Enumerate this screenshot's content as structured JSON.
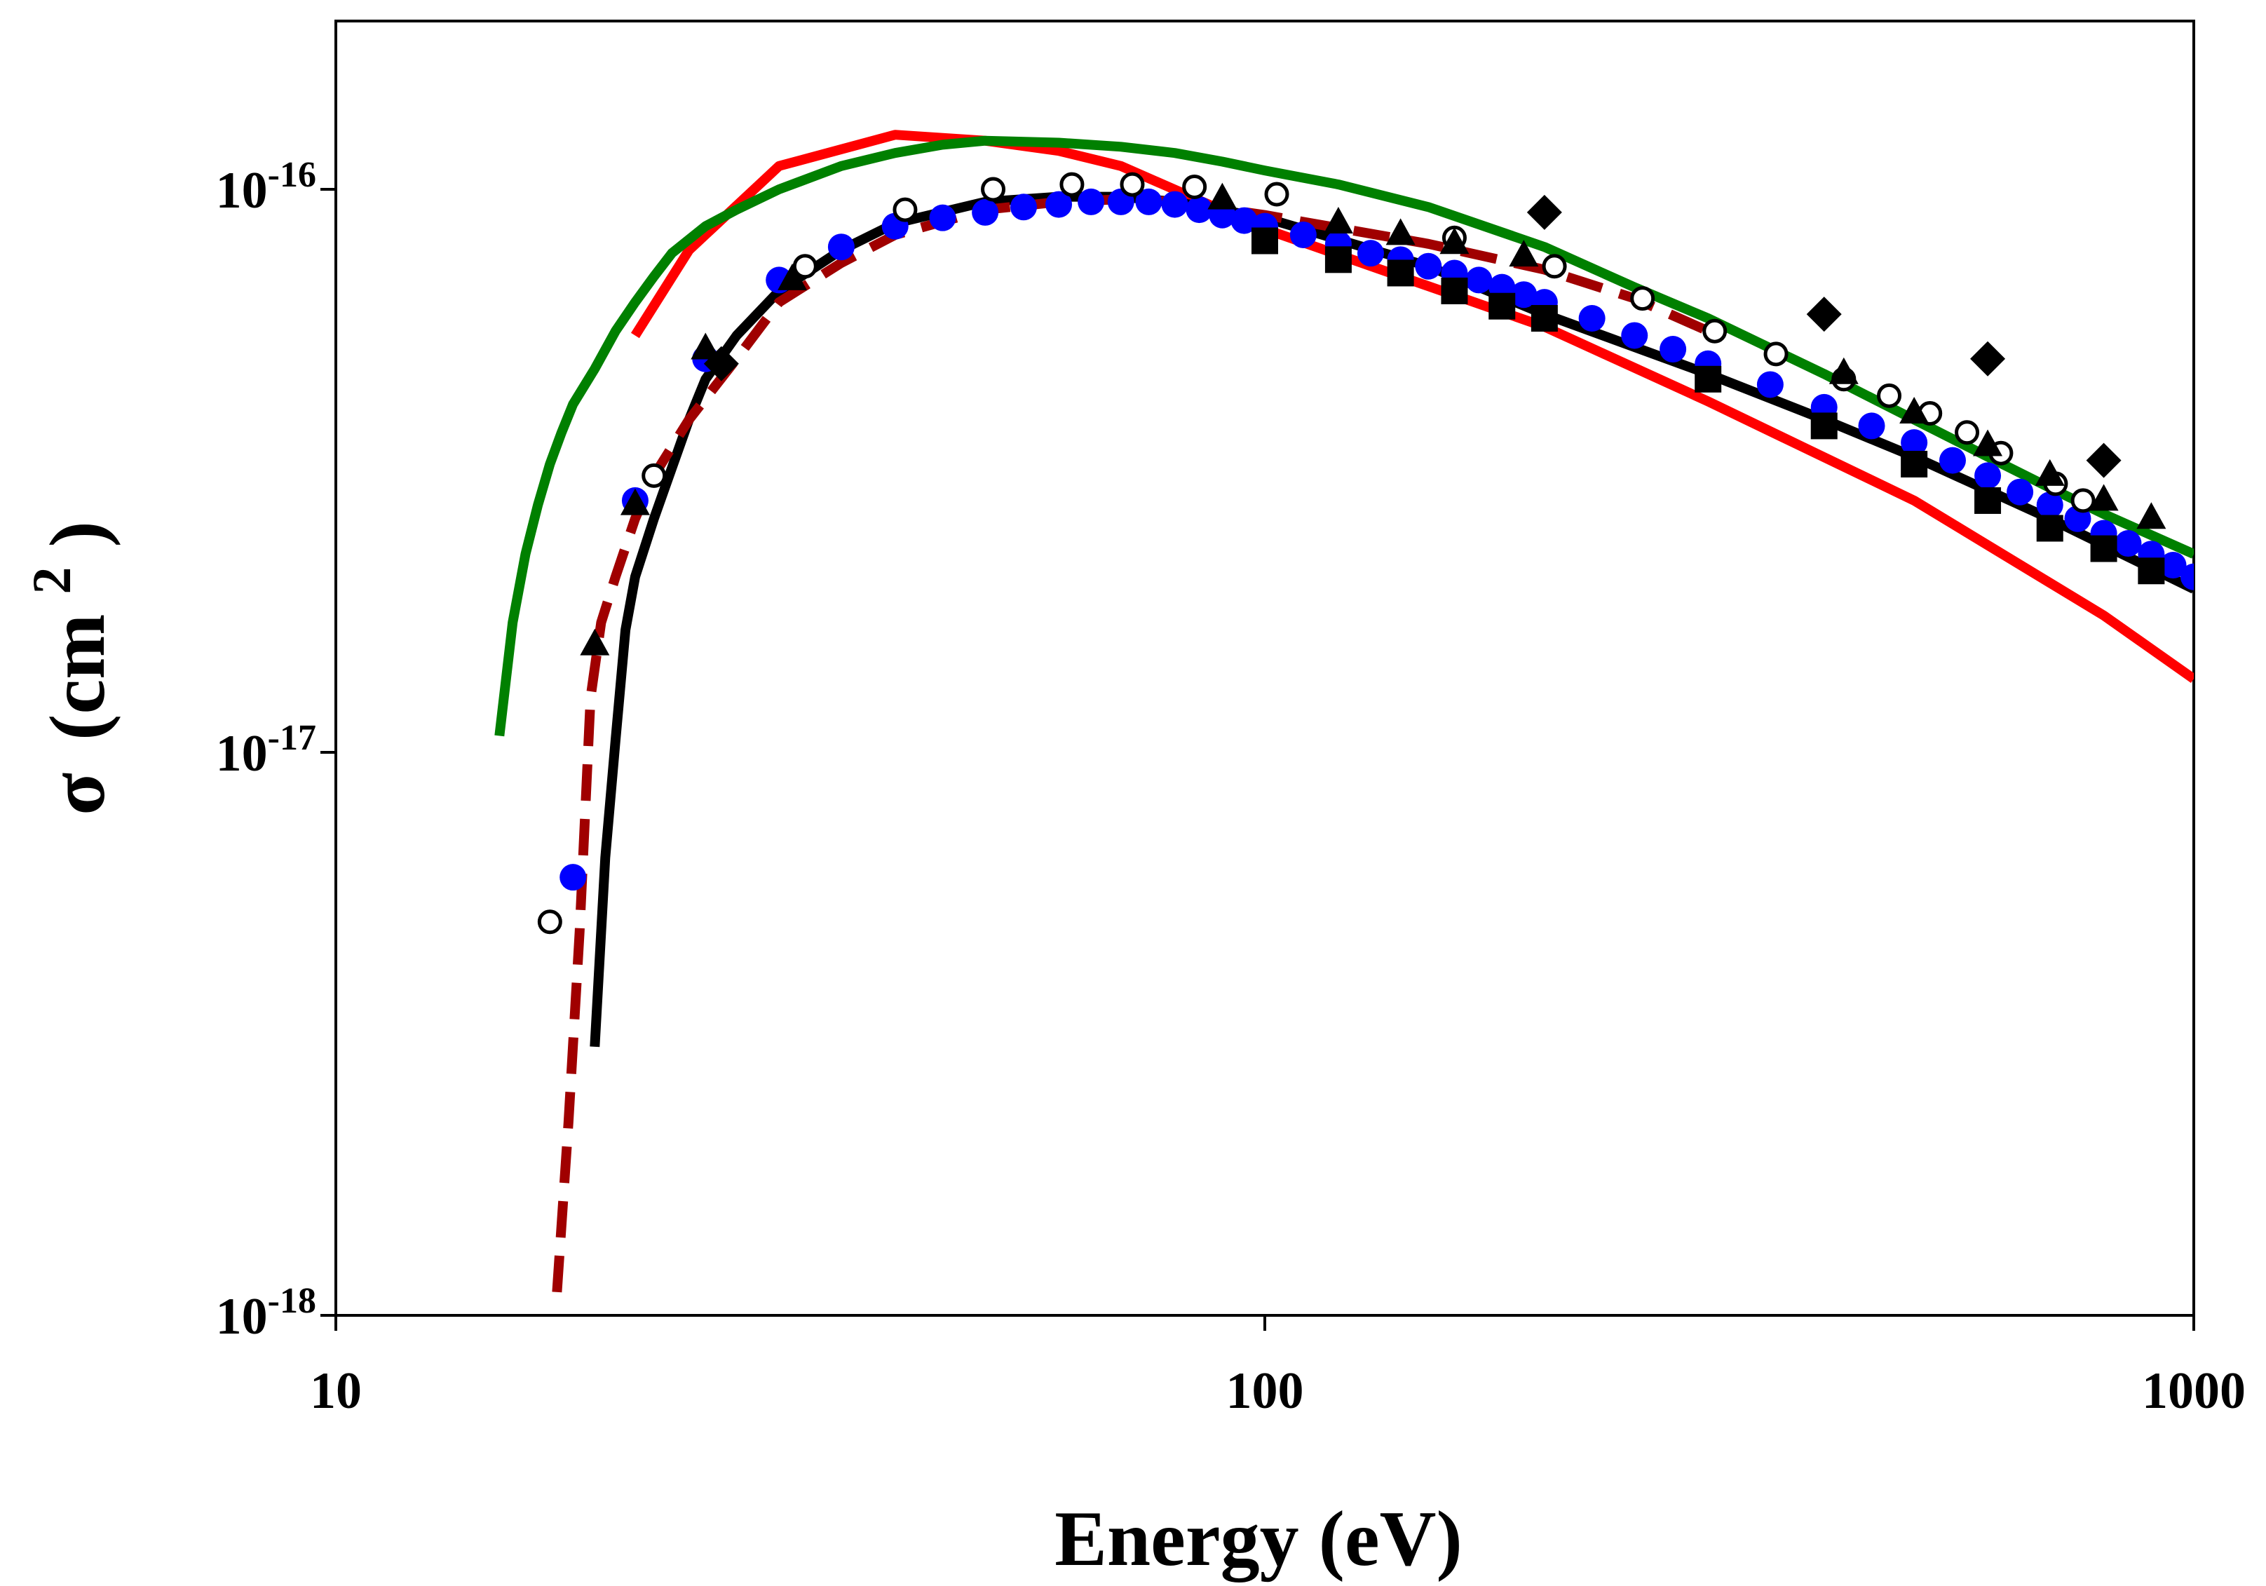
{
  "chart_data": {
    "type": "scatter",
    "title": "",
    "xlabel": "Energy (eV)",
    "ylabel_symbol": "σ",
    "ylabel_unit": "(cm",
    "ylabel_exp": "2",
    "ylabel_close": ")",
    "x_scale": "log",
    "y_scale": "log",
    "xlim": [
      10,
      1000
    ],
    "ylim": [
      1e-18,
      2e-16
    ],
    "x_ticks": [
      {
        "value": 10,
        "label": "10"
      },
      {
        "value": 100,
        "label": "100"
      },
      {
        "value": 1000,
        "label": "1000"
      }
    ],
    "y_ticks": [
      {
        "value": 1e-18,
        "base": "10",
        "exp": "-18"
      },
      {
        "value": 1e-17,
        "base": "10",
        "exp": "-17"
      },
      {
        "value": 1e-16,
        "base": "10",
        "exp": "-16"
      }
    ],
    "grid": false,
    "legend": "none",
    "series": [
      {
        "name": "red-line",
        "kind": "line",
        "color": "#ff0000",
        "dash": "solid",
        "x": [
          21,
          24,
          30,
          40,
          50,
          60,
          70,
          100,
          200,
          300,
          500,
          800,
          1000
        ],
        "y": [
          5.5e-17,
          7.8e-17,
          1.1e-16,
          1.25e-16,
          1.22e-16,
          1.17e-16,
          1.1e-16,
          8.5e-17,
          5.7e-17,
          4.2e-17,
          2.8e-17,
          1.75e-17,
          1.35e-17
        ]
      },
      {
        "name": "green-line",
        "kind": "line",
        "color": "#008000",
        "dash": "solid",
        "x": [
          15,
          15.5,
          16,
          16.5,
          17,
          17.5,
          18,
          19,
          20,
          21,
          22,
          23,
          25,
          27,
          30,
          35,
          40,
          45,
          50,
          60,
          70,
          80,
          90,
          100,
          120,
          150,
          200,
          250,
          300,
          400,
          500,
          600,
          700,
          800,
          1000
        ],
        "y": [
          1.07e-17,
          1.7e-17,
          2.25e-17,
          2.75e-17,
          3.25e-17,
          3.7e-17,
          4.15e-17,
          4.8e-17,
          5.6e-17,
          6.3e-17,
          7e-17,
          7.7e-17,
          8.6e-17,
          9.2e-17,
          1e-16,
          1.1e-16,
          1.16e-16,
          1.2e-16,
          1.22e-16,
          1.21e-16,
          1.19e-16,
          1.16e-16,
          1.12e-16,
          1.08e-16,
          1.02e-16,
          9.3e-17,
          7.9e-17,
          6.7e-17,
          5.9e-17,
          4.7e-17,
          3.9e-17,
          3.35e-17,
          2.95e-17,
          2.65e-17,
          2.25e-17
        ]
      },
      {
        "name": "black-line",
        "kind": "line",
        "color": "#000000",
        "dash": "solid",
        "x": [
          19,
          19.5,
          20,
          20.5,
          21,
          22,
          23,
          24,
          25,
          27,
          30,
          35,
          40,
          50,
          60,
          70,
          80,
          100,
          150,
          200,
          300,
          400,
          500,
          700,
          1000
        ],
        "y": [
          3e-18,
          6.5e-18,
          1.05e-17,
          1.65e-17,
          2.05e-17,
          2.6e-17,
          3.2e-17,
          3.9e-17,
          4.6e-17,
          5.5e-17,
          6.6e-17,
          7.8e-17,
          8.7e-17,
          9.5e-17,
          9.7e-17,
          9.7e-17,
          9.5e-17,
          8.9e-17,
          7.3e-17,
          6e-17,
          4.7e-17,
          3.9e-17,
          3.35e-17,
          2.6e-17,
          1.95e-17
        ]
      },
      {
        "name": "darkred-dashed-line",
        "kind": "line",
        "color": "#a00000",
        "dash": "dashed",
        "x": [
          17.3,
          17.8,
          18.3,
          18.8,
          19.3,
          20,
          21,
          22,
          24,
          27,
          30,
          35,
          40,
          50,
          60,
          70,
          80,
          100,
          150,
          200,
          250,
          300
        ],
        "y": [
          1.1e-18,
          2.2e-18,
          4.8e-18,
          1.25e-17,
          1.7e-17,
          2.05e-17,
          2.6e-17,
          3.1e-17,
          3.9e-17,
          5e-17,
          6.3e-17,
          7.4e-17,
          8.3e-17,
          9.2e-17,
          9.5e-17,
          9.6e-17,
          9.5e-17,
          9e-17,
          8e-17,
          7.2e-17,
          6.4e-17,
          5.6e-17
        ]
      },
      {
        "name": "blue-filled-circles",
        "kind": "marker",
        "marker": "circle",
        "color": "#0000ff",
        "fill": true,
        "x": [
          18,
          21,
          25,
          30,
          35,
          40,
          45,
          50,
          55,
          60,
          65,
          70,
          75,
          80,
          85,
          90,
          95,
          100,
          110,
          120,
          130,
          140,
          150,
          160,
          170,
          180,
          190,
          200,
          225,
          250,
          275,
          300,
          350,
          400,
          450,
          500,
          550,
          600,
          650,
          700,
          750,
          800,
          850,
          900,
          950,
          1000
        ],
        "y": [
          6e-18,
          2.8e-17,
          5e-17,
          6.9e-17,
          7.9e-17,
          8.6e-17,
          8.9e-17,
          9.1e-17,
          9.3e-17,
          9.4e-17,
          9.5e-17,
          9.5e-17,
          9.5e-17,
          9.4e-17,
          9.2e-17,
          9e-17,
          8.8e-17,
          8.6e-17,
          8.3e-17,
          8e-17,
          7.7e-17,
          7.5e-17,
          7.3e-17,
          7.1e-17,
          6.9e-17,
          6.7e-17,
          6.5e-17,
          6.3e-17,
          5.9e-17,
          5.5e-17,
          5.2e-17,
          4.9e-17,
          4.5e-17,
          4.1e-17,
          3.8e-17,
          3.55e-17,
          3.3e-17,
          3.1e-17,
          2.9e-17,
          2.75e-17,
          2.6e-17,
          2.45e-17,
          2.35e-17,
          2.25e-17,
          2.15e-17,
          2.05e-17
        ]
      },
      {
        "name": "open-circles",
        "kind": "marker",
        "marker": "circle",
        "color": "#000000",
        "fill": false,
        "x": [
          17,
          22,
          32,
          41,
          51,
          62,
          72,
          84,
          103,
          160,
          205,
          255,
          305,
          355,
          420,
          470,
          520,
          570,
          620,
          710,
          760
        ],
        "y": [
          5e-18,
          3.1e-17,
          7.3e-17,
          9.2e-17,
          1e-16,
          1.02e-16,
          1.02e-16,
          1.01e-16,
          9.8e-17,
          8.2e-17,
          7.3e-17,
          6.4e-17,
          5.6e-17,
          5.1e-17,
          4.6e-17,
          4.3e-17,
          4e-17,
          3.7e-17,
          3.4e-17,
          3e-17,
          2.8e-17
        ]
      },
      {
        "name": "black-triangles",
        "kind": "marker",
        "marker": "triangle",
        "color": "#000000",
        "fill": true,
        "x": [
          19,
          21,
          25,
          31,
          90,
          120,
          140,
          160,
          190,
          420,
          500,
          600,
          700,
          800,
          900
        ],
        "y": [
          1.55e-17,
          2.75e-17,
          5.2e-17,
          6.9e-17,
          9.6e-17,
          8.7e-17,
          8.3e-17,
          8e-17,
          7.6e-17,
          4.7e-17,
          4e-17,
          3.5e-17,
          3.1e-17,
          2.8e-17,
          2.6e-17
        ]
      },
      {
        "name": "black-squares",
        "kind": "marker",
        "marker": "square",
        "color": "#000000",
        "fill": true,
        "x": [
          100,
          120,
          140,
          160,
          180,
          200,
          300,
          400,
          500,
          600,
          700,
          800,
          900
        ],
        "y": [
          8.1e-17,
          7.5e-17,
          7.1e-17,
          6.6e-17,
          6.2e-17,
          5.9e-17,
          4.6e-17,
          3.8e-17,
          3.25e-17,
          2.8e-17,
          2.5e-17,
          2.3e-17,
          2.1e-17
        ]
      },
      {
        "name": "black-diamonds",
        "kind": "marker",
        "marker": "diamond",
        "color": "#000000",
        "fill": true,
        "x": [
          26,
          200,
          400,
          600,
          800
        ],
        "y": [
          4.9e-17,
          9.1e-17,
          6e-17,
          5e-17,
          3.3e-17
        ]
      }
    ]
  }
}
